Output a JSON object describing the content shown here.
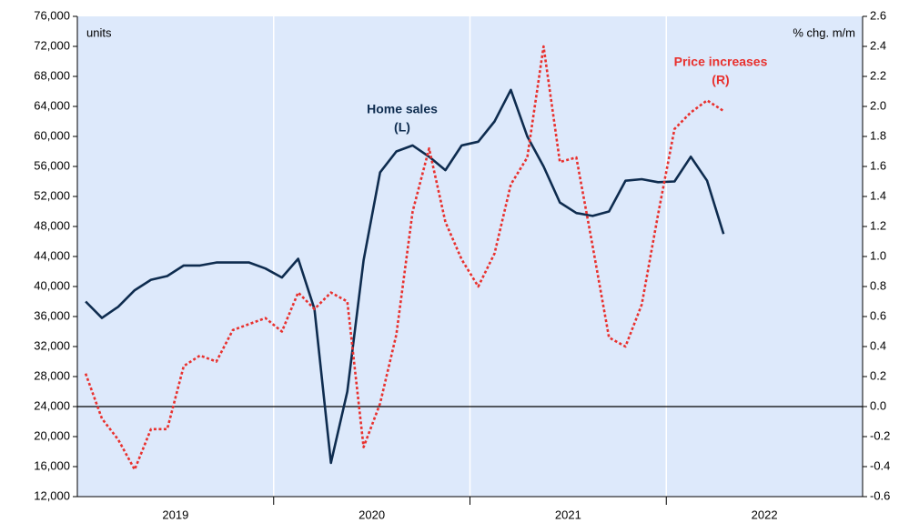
{
  "chart_data": {
    "type": "line",
    "subtitle_left": "units",
    "subtitle_right": "% chg. m/m",
    "x": [
      2019.042,
      2019.125,
      2019.208,
      2019.292,
      2019.375,
      2019.458,
      2019.542,
      2019.625,
      2019.708,
      2019.792,
      2019.875,
      2019.958,
      2020.042,
      2020.125,
      2020.208,
      2020.292,
      2020.375,
      2020.458,
      2020.542,
      2020.625,
      2020.708,
      2020.792,
      2020.875,
      2020.958,
      2021.042,
      2021.125,
      2021.208,
      2021.292,
      2021.375,
      2021.458,
      2021.542,
      2021.625,
      2021.708,
      2021.792,
      2021.875,
      2021.958,
      2022.042,
      2022.125,
      2022.208,
      2022.292
    ],
    "xlim": [
      2019,
      2023
    ],
    "xticks": [
      {
        "value": 2019.5,
        "label": "2019"
      },
      {
        "value": 2020.5,
        "label": "2020"
      },
      {
        "value": 2021.5,
        "label": "2021"
      },
      {
        "value": 2022.5,
        "label": "2022"
      }
    ],
    "xgrid": [
      2020,
      2021,
      2022
    ],
    "ylim": [
      12000,
      76000
    ],
    "yticks": [
      {
        "value": 12000,
        "label": "12,000"
      },
      {
        "value": 16000,
        "label": "16,000"
      },
      {
        "value": 20000,
        "label": "20,000"
      },
      {
        "value": 24000,
        "label": "24,000"
      },
      {
        "value": 28000,
        "label": "28,000"
      },
      {
        "value": 32000,
        "label": "32,000"
      },
      {
        "value": 36000,
        "label": "36,000"
      },
      {
        "value": 40000,
        "label": "40,000"
      },
      {
        "value": 44000,
        "label": "44,000"
      },
      {
        "value": 48000,
        "label": "48,000"
      },
      {
        "value": 52000,
        "label": "52,000"
      },
      {
        "value": 56000,
        "label": "56,000"
      },
      {
        "value": 60000,
        "label": "60,000"
      },
      {
        "value": 64000,
        "label": "64,000"
      },
      {
        "value": 68000,
        "label": "68,000"
      },
      {
        "value": 72000,
        "label": "72,000"
      },
      {
        "value": 76000,
        "label": "76,000"
      }
    ],
    "y2lim": [
      -0.6,
      2.6
    ],
    "y2ticks": [
      -0.6,
      -0.4,
      -0.2,
      {
        "value": 0,
        "label": "0.0"
      },
      0.2,
      0.4,
      0.6,
      0.8,
      {
        "value": 1,
        "label": "1.0"
      },
      1.2,
      1.4,
      1.6,
      1.8,
      {
        "value": 2,
        "label": "2.0"
      },
      2.2,
      2.4,
      2.6
    ],
    "hline": {
      "axis": "y2",
      "value": 0
    },
    "series": [
      {
        "name": "Home sales",
        "color": "#0e2c4f",
        "style": "solid",
        "annotation": [
          "Home sales",
          "(L)"
        ],
        "values": [
          38000,
          35800,
          37300,
          39500,
          40900,
          41400,
          42800,
          42800,
          43200,
          43200,
          43200,
          42400,
          41200,
          43700,
          37000,
          16500,
          26000,
          43500,
          55200,
          58000,
          58800,
          57300,
          55500,
          58800,
          59300,
          62000,
          66200,
          60000,
          56000,
          51200,
          49800,
          49400,
          50000,
          54100,
          54300,
          53900,
          54000,
          57300,
          54100,
          47000
        ]
      },
      {
        "name": "Price increases",
        "color": "#e8312e",
        "style": "dotted",
        "axis": "y2",
        "annotation": [
          "Price increases",
          "(R)"
        ],
        "values": [
          0.22,
          -0.08,
          -0.22,
          -0.42,
          -0.15,
          -0.15,
          0.27,
          0.34,
          0.3,
          0.51,
          0.55,
          0.59,
          0.5,
          0.76,
          0.65,
          0.76,
          0.7,
          -0.27,
          0.02,
          0.48,
          1.3,
          1.72,
          1.23,
          0.98,
          0.8,
          1.02,
          1.48,
          1.66,
          2.4,
          1.63,
          1.66,
          1.07,
          0.46,
          0.4,
          0.68,
          1.28,
          1.85,
          1.96,
          2.04,
          1.97
        ]
      }
    ]
  }
}
